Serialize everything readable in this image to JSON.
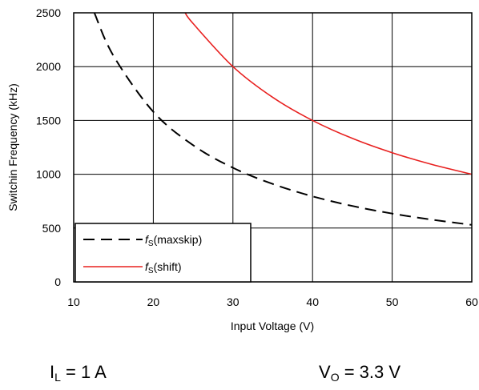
{
  "chart_data": {
    "type": "line",
    "xlabel": "Input Voltage (V)",
    "ylabel": "Switchin Frequency (kHz)",
    "xlim": [
      10,
      60
    ],
    "ylim": [
      0,
      2500
    ],
    "xticks": [
      10,
      20,
      30,
      40,
      50,
      60
    ],
    "yticks": [
      0,
      500,
      1000,
      1500,
      2000,
      2500
    ],
    "grid": true,
    "legend_position": "bottom-left",
    "series": [
      {
        "name": "fS(maxskip)",
        "name_main": "f",
        "name_sub": "S",
        "name_rest": "(maxskip)",
        "color": "#000000",
        "dash": "dashed",
        "x": [
          12.6,
          15,
          20,
          25,
          30,
          35,
          40,
          45,
          50,
          55,
          60
        ],
        "y": [
          2500,
          2100,
          1580,
          1270,
          1060,
          910,
          795,
          705,
          635,
          578,
          530
        ]
      },
      {
        "name": "fS(shift)",
        "name_main": "f",
        "name_sub": "S",
        "name_rest": "(shift)",
        "color": "#e8201f",
        "dash": "solid",
        "x": [
          24,
          25,
          30,
          35,
          40,
          45,
          50,
          55,
          60
        ],
        "y": [
          2500,
          2400,
          2000,
          1714,
          1500,
          1333,
          1200,
          1091,
          1000
        ]
      }
    ]
  },
  "conditions": {
    "load": {
      "main": "I",
      "sub": "L",
      "rest": " = 1 A"
    },
    "output": {
      "main": "V",
      "sub": "O",
      "rest": " = 3.3 V"
    }
  }
}
